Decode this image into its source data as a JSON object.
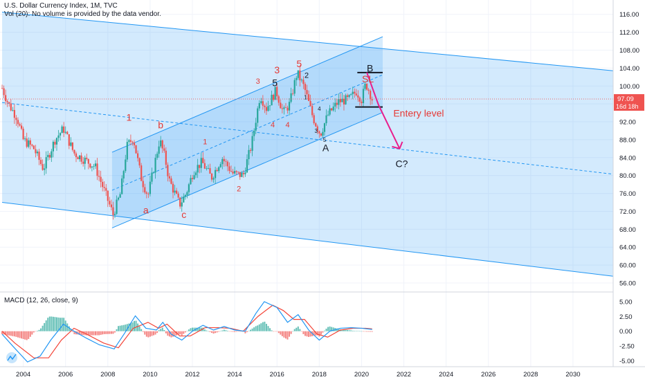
{
  "header": {
    "title": "U.S. Dollar Currency Index, 1M, TVC",
    "volume_note": "Vol (20): No volume is provided by the data vendor."
  },
  "price_badge": {
    "value": "97.09",
    "countdown": "16d 18h"
  },
  "macd_label": "MACD (12, 26, close, 9)",
  "colors": {
    "channel": "#2196f3",
    "up_candle": "#26a69a",
    "down_candle": "#ef5350",
    "wave_labels": "#e53935",
    "arrow": "#e91e8c",
    "macd_line": "#2196f3",
    "signal_line": "#f44336"
  },
  "chart_data": [
    {
      "type": "candlestick",
      "title": "U.S. Dollar Currency Index, 1M, TVC",
      "x_ticks": [
        "2004",
        "2006",
        "2008",
        "2010",
        "2012",
        "2014",
        "2016",
        "2018",
        "2020",
        "2022",
        "2024",
        "2026",
        "2028",
        "2030"
      ],
      "y_ticks": [
        "116.00",
        "112.00",
        "108.00",
        "104.00",
        "100.00",
        "96.00",
        "92.00",
        "88.00",
        "84.00",
        "80.00",
        "76.00",
        "72.00",
        "68.00",
        "64.00",
        "60.00",
        "56.00"
      ],
      "xlim": [
        2002.9,
        2031.9
      ],
      "ylim": [
        54.3,
        119.2
      ],
      "anchor_prices": [
        [
          2003.0,
          99.5
        ],
        [
          2003.3,
          96.0
        ],
        [
          2003.7,
          93.0
        ],
        [
          2004.0,
          88.0
        ],
        [
          2004.5,
          86.0
        ],
        [
          2004.95,
          81.5
        ],
        [
          2005.5,
          88.0
        ],
        [
          2005.9,
          90.5
        ],
        [
          2006.4,
          85.0
        ],
        [
          2006.9,
          83.5
        ],
        [
          2007.4,
          82.0
        ],
        [
          2007.8,
          77.0
        ],
        [
          2008.25,
          71.3
        ],
        [
          2008.6,
          76.0
        ],
        [
          2008.9,
          86.5
        ],
        [
          2009.2,
          88.5
        ],
        [
          2009.6,
          79.0
        ],
        [
          2009.9,
          75.5
        ],
        [
          2010.45,
          88.0
        ],
        [
          2010.7,
          84.0
        ],
        [
          2010.9,
          79.0
        ],
        [
          2011.4,
          73.5
        ],
        [
          2011.7,
          76.0
        ],
        [
          2012.05,
          81.0
        ],
        [
          2012.45,
          83.0
        ],
        [
          2012.9,
          79.5
        ],
        [
          2013.4,
          84.0
        ],
        [
          2013.9,
          80.5
        ],
        [
          2014.4,
          80.0
        ],
        [
          2014.8,
          87.0
        ],
        [
          2015.2,
          98.0
        ],
        [
          2015.5,
          95.0
        ],
        [
          2015.95,
          99.0
        ],
        [
          2016.3,
          94.0
        ],
        [
          2016.6,
          96.0
        ],
        [
          2016.95,
          103.0
        ],
        [
          2017.3,
          99.5
        ],
        [
          2017.7,
          93.0
        ],
        [
          2018.05,
          89.2
        ],
        [
          2018.4,
          93.5
        ],
        [
          2018.9,
          96.5
        ],
        [
          2019.4,
          97.0
        ],
        [
          2019.75,
          98.8
        ],
        [
          2020.0,
          97.0
        ],
        [
          2020.2,
          100.5
        ],
        [
          2020.35,
          99.0
        ],
        [
          2020.5,
          97.09
        ]
      ],
      "price_line": 97.09,
      "channels": [
        {
          "name": "long-term descending channel",
          "upper": [
            [
              2003.0,
              116.5
            ],
            [
              2031.9,
              103.4
            ]
          ],
          "lower": [
            [
              2003.0,
              74.0
            ],
            [
              2031.9,
              57.5
            ]
          ],
          "midline": [
            [
              2003.0,
              96.3
            ],
            [
              2031.9,
              80.3
            ]
          ]
        },
        {
          "name": "rising channel",
          "upper": [
            [
              2008.2,
              85.2
            ],
            [
              2021.0,
              111.0
            ]
          ],
          "lower": [
            [
              2008.2,
              68.3
            ],
            [
              2021.0,
              94.1
            ]
          ],
          "midline": [
            [
              2008.2,
              76.7
            ],
            [
              2021.0,
              102.5
            ]
          ]
        }
      ],
      "horizontal_levels": [
        {
          "name": "stop loss",
          "price": 103.0,
          "x": [
            2019.8,
            2021.0
          ]
        },
        {
          "name": "entry level",
          "price": 95.3,
          "x": [
            2019.7,
            2021.0
          ]
        }
      ],
      "projection_arrow": [
        [
          2020.25,
          103.0
        ],
        [
          2020.8,
          95.8
        ],
        [
          2021.8,
          86.0
        ]
      ],
      "annotations": [
        {
          "text": "1",
          "x": 2009.0,
          "y": 92.2,
          "color": "red"
        },
        {
          "text": "b",
          "x": 2010.5,
          "y": 90.5,
          "color": "red"
        },
        {
          "text": "a",
          "x": 2009.8,
          "y": 71.5,
          "color": "red"
        },
        {
          "text": "c",
          "x": 2011.6,
          "y": 70.5,
          "color": "red"
        },
        {
          "text": "1",
          "x": 2012.6,
          "y": 87.0,
          "color": "red",
          "small": true
        },
        {
          "text": "2",
          "x": 2014.2,
          "y": 76.5,
          "color": "red",
          "small": true
        },
        {
          "text": "3",
          "x": 2015.1,
          "y": 100.5,
          "color": "red",
          "small": true
        },
        {
          "text": "3",
          "x": 2016.0,
          "y": 102.8,
          "color": "red"
        },
        {
          "text": "5",
          "x": 2015.9,
          "y": 100.0,
          "color": "dark"
        },
        {
          "text": "5",
          "x": 2017.05,
          "y": 104.2,
          "color": "red"
        },
        {
          "text": "4",
          "x": 2015.8,
          "y": 90.8,
          "color": "red",
          "small": true
        },
        {
          "text": "4",
          "x": 2016.5,
          "y": 90.8,
          "color": "red",
          "small": true
        },
        {
          "text": "2",
          "x": 2017.4,
          "y": 101.8,
          "color": "dark",
          "small": true
        },
        {
          "text": "1",
          "x": 2017.35,
          "y": 97.0,
          "color": "dark",
          "tiny": true
        },
        {
          "text": "4",
          "x": 2018.0,
          "y": 94.5,
          "color": "dark",
          "tiny": true
        },
        {
          "text": "3",
          "x": 2017.85,
          "y": 89.5,
          "color": "dark",
          "tiny": true
        },
        {
          "text": "5",
          "x": 2018.25,
          "y": 87.5,
          "color": "dark",
          "tiny": true
        },
        {
          "text": "A",
          "x": 2018.3,
          "y": 85.4,
          "color": "dark"
        },
        {
          "text": "B",
          "x": 2020.4,
          "y": 103.2,
          "color": "dark"
        },
        {
          "text": "SL",
          "x": 2020.3,
          "y": 100.8,
          "color": "red"
        },
        {
          "text": "Entery level",
          "x": 2022.7,
          "y": 93.2,
          "color": "red"
        },
        {
          "text": "C?",
          "x": 2021.9,
          "y": 81.9,
          "color": "dark"
        }
      ]
    },
    {
      "type": "histogram+line",
      "title": "MACD (12, 26, close, 9)",
      "y_ticks": [
        "5.00",
        "2.50",
        "0.00",
        "-2.50",
        "-5.00"
      ],
      "ylim": [
        -6.0,
        6.4
      ],
      "macd_line": [
        [
          2003.0,
          -0.5
        ],
        [
          2003.5,
          -2.5
        ],
        [
          2004.2,
          -5.2
        ],
        [
          2004.8,
          -4.2
        ],
        [
          2005.3,
          -1.5
        ],
        [
          2005.9,
          1.2
        ],
        [
          2006.4,
          0.0
        ],
        [
          2007.0,
          -1.2
        ],
        [
          2007.6,
          -2.3
        ],
        [
          2008.3,
          -3.0
        ],
        [
          2008.8,
          -0.3
        ],
        [
          2009.3,
          2.6
        ],
        [
          2009.8,
          0.5
        ],
        [
          2010.3,
          0.2
        ],
        [
          2010.6,
          1.5
        ],
        [
          2011.0,
          -0.5
        ],
        [
          2011.5,
          -1.5
        ],
        [
          2012.0,
          0.0
        ],
        [
          2012.5,
          1.0
        ],
        [
          2013.0,
          0.2
        ],
        [
          2013.5,
          0.8
        ],
        [
          2014.0,
          0.2
        ],
        [
          2014.5,
          0.0
        ],
        [
          2015.0,
          3.0
        ],
        [
          2015.4,
          5.0
        ],
        [
          2016.0,
          4.0
        ],
        [
          2016.5,
          1.5
        ],
        [
          2017.0,
          2.8
        ],
        [
          2017.5,
          0.2
        ],
        [
          2018.0,
          -1.5
        ],
        [
          2018.5,
          0.0
        ],
        [
          2019.0,
          0.5
        ],
        [
          2019.5,
          0.6
        ],
        [
          2020.0,
          0.5
        ],
        [
          2020.5,
          0.3
        ]
      ],
      "signal_line": [
        [
          2003.0,
          0.0
        ],
        [
          2003.6,
          -2.0
        ],
        [
          2004.5,
          -4.5
        ],
        [
          2005.2,
          -4.5
        ],
        [
          2005.8,
          -1.5
        ],
        [
          2006.4,
          0.5
        ],
        [
          2007.0,
          -0.5
        ],
        [
          2007.8,
          -2.0
        ],
        [
          2008.5,
          -2.8
        ],
        [
          2009.2,
          0.5
        ],
        [
          2009.9,
          1.5
        ],
        [
          2010.4,
          0.5
        ],
        [
          2010.8,
          1.2
        ],
        [
          2011.4,
          -0.8
        ],
        [
          2011.9,
          -0.8
        ],
        [
          2012.6,
          0.6
        ],
        [
          2013.2,
          0.6
        ],
        [
          2013.8,
          0.5
        ],
        [
          2014.4,
          0.0
        ],
        [
          2015.1,
          2.5
        ],
        [
          2015.8,
          4.4
        ],
        [
          2016.3,
          3.5
        ],
        [
          2016.8,
          2.0
        ],
        [
          2017.3,
          2.0
        ],
        [
          2017.9,
          -0.5
        ],
        [
          2018.4,
          -1.0
        ],
        [
          2019.0,
          0.2
        ],
        [
          2019.6,
          0.5
        ],
        [
          2020.2,
          0.5
        ],
        [
          2020.5,
          0.4
        ]
      ]
    }
  ]
}
